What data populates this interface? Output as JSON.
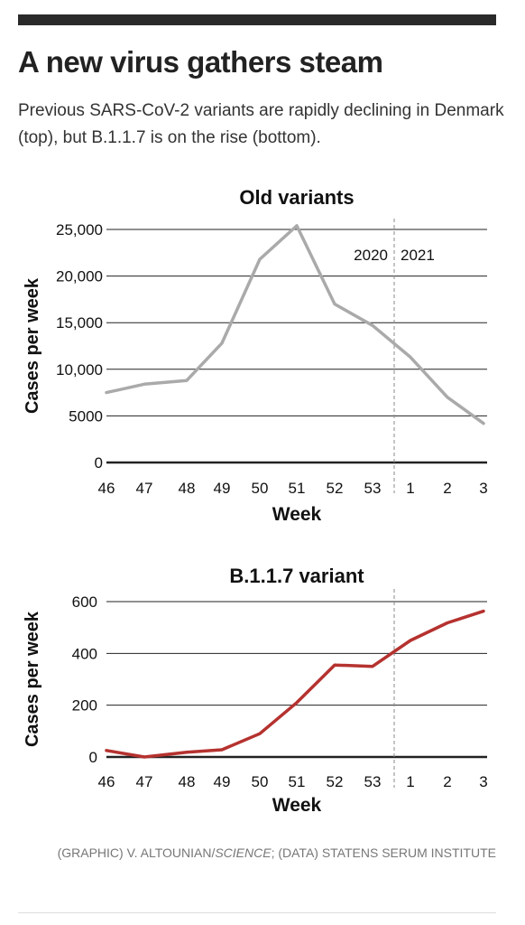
{
  "header": {
    "title": "A new virus gathers steam",
    "subtitle": "Previous SARS-CoV-2 variants are rapidly declining in Denmark (top), but B.1.1.7 is on the rise (bottom)."
  },
  "credit": {
    "prefix": "(GRAPHIC) V. ALTOUNIAN/",
    "italic": "SCIENCE",
    "suffix": "; (DATA) STATENS SERUM INSTITUTE"
  },
  "colors": {
    "old": "#aaaaaa",
    "b117": "#b5322f",
    "grid": "#222222",
    "divider": "#888888"
  },
  "chart_data": [
    {
      "type": "line",
      "title": "Old variants",
      "xlabel": "Week",
      "ylabel": "Cases per week",
      "categories": [
        "46",
        "47",
        "48",
        "49",
        "50",
        "51",
        "52",
        "53",
        "1",
        "2",
        "3"
      ],
      "ylim": [
        0,
        25000
      ],
      "yticks": [
        0,
        5000,
        10000,
        15000,
        20000,
        25000
      ],
      "ytick_labels": [
        "0",
        "5000",
        "10,000",
        "15,000",
        "20,000",
        "25,000"
      ],
      "year_labels": [
        "2020",
        "2021"
      ],
      "series": [
        {
          "values": [
            7500,
            8400,
            8800,
            12800,
            21800,
            25400,
            17000,
            14700,
            11300,
            7000,
            4200
          ]
        }
      ],
      "grid": true
    },
    {
      "type": "line",
      "title": "B.1.1.7 variant",
      "xlabel": "Week",
      "ylabel": "Cases per week",
      "categories": [
        "46",
        "47",
        "48",
        "49",
        "50",
        "51",
        "52",
        "53",
        "1",
        "2",
        "3"
      ],
      "ylim": [
        0,
        600
      ],
      "yticks": [
        0,
        200,
        400,
        600
      ],
      "ytick_labels": [
        "0",
        "200",
        "400",
        "600"
      ],
      "series": [
        {
          "values": [
            25,
            0,
            18,
            28,
            90,
            210,
            355,
            350,
            450,
            518,
            563
          ]
        }
      ],
      "grid": true
    }
  ]
}
